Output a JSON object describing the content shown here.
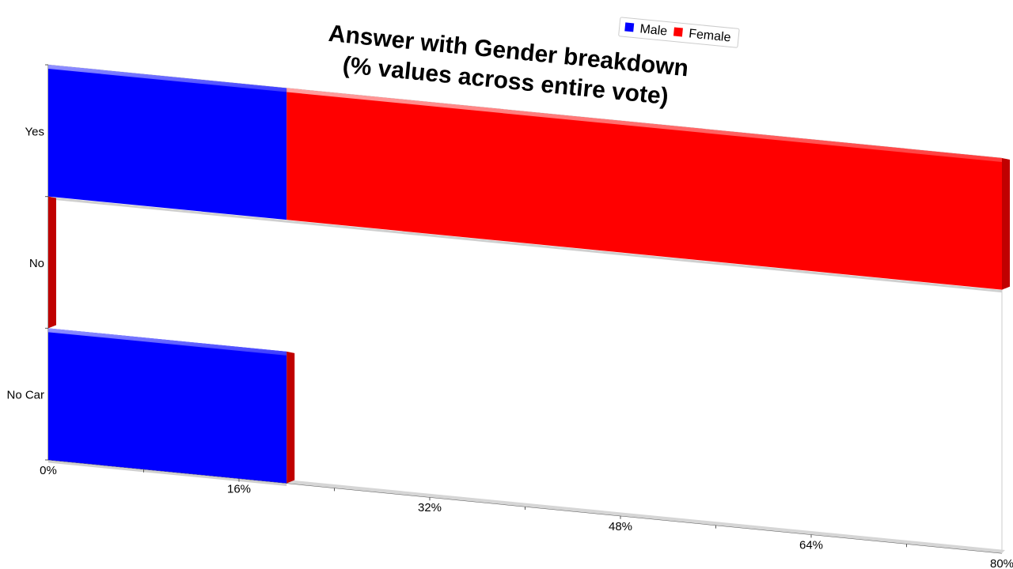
{
  "chart_data": {
    "type": "bar",
    "orientation": "horizontal",
    "stacked": true,
    "title_lines": [
      "Answer with Gender breakdown",
      "(% values across entire vote)"
    ],
    "categories": [
      "Yes",
      "No",
      "No Car"
    ],
    "series": [
      {
        "name": "Male",
        "color": "#0000ff",
        "values": [
          20,
          0,
          20
        ]
      },
      {
        "name": "Female",
        "color": "#ff0000",
        "values": [
          60,
          0,
          0
        ]
      }
    ],
    "x_ticks": [
      "0%",
      "16%",
      "32%",
      "48%",
      "64%",
      "80%"
    ],
    "xlim": [
      0,
      80
    ],
    "legend_position": "top-right",
    "grid": false
  }
}
